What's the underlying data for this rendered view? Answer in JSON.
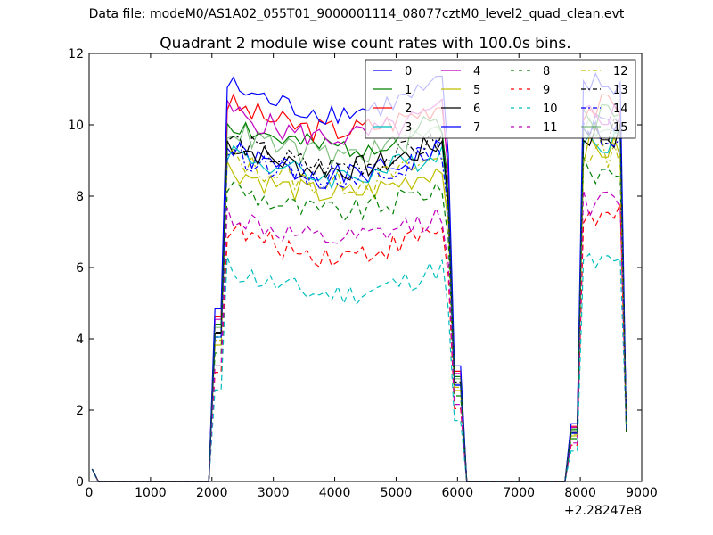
{
  "figure": {
    "supertitle": "Data file: modeM0/AS1A02_055T01_9000001114_08077cztM0_level2_quad_clean.evt"
  },
  "chart_data": {
    "type": "line",
    "title": "Quadrant 2 module wise count rates with 100.0s bins.",
    "xlabel": "",
    "ylabel": "",
    "x_offset_label": "+2.28247e8",
    "xlim": [
      0,
      9000
    ],
    "ylim": [
      0,
      12
    ],
    "xticks": [
      0,
      1000,
      2000,
      3000,
      4000,
      5000,
      6000,
      7000,
      8000,
      9000
    ],
    "yticks": [
      0,
      2,
      4,
      6,
      8,
      10,
      12
    ],
    "grid": false,
    "legend": {
      "placement": "top-right",
      "columns": 4
    },
    "series": [
      {
        "name": "0",
        "color": "#0000ff",
        "dash": "solid",
        "base": 9.0,
        "seg2": 10.0
      },
      {
        "name": "1",
        "color": "#008000",
        "dash": "solid",
        "base": 9.8,
        "seg2": 10.3
      },
      {
        "name": "2",
        "color": "#ff0000",
        "dash": "solid",
        "base": 10.3,
        "seg2": 10.5
      },
      {
        "name": "3",
        "color": "#00bfbf",
        "dash": "solid",
        "base": 9.0,
        "seg2": 9.6
      },
      {
        "name": "4",
        "color": "#bf00bf",
        "dash": "solid",
        "base": 10.1,
        "seg2": 10.3
      },
      {
        "name": "5",
        "color": "#bfbf00",
        "dash": "solid",
        "base": 8.5,
        "seg2": 9.3
      },
      {
        "name": "6",
        "color": "#000000",
        "dash": "solid",
        "base": 9.2,
        "seg2": 9.7
      },
      {
        "name": "7",
        "color": "#0000ff",
        "dash": "solid",
        "base": 10.8,
        "seg2": 11.1
      },
      {
        "name": "8",
        "color": "#008000",
        "dash": "dashed",
        "base": 8.0,
        "seg2": 8.7
      },
      {
        "name": "9",
        "color": "#ff0000",
        "dash": "dashed",
        "base": 6.8,
        "seg2": 7.4
      },
      {
        "name": "10",
        "color": "#00bfbf",
        "dash": "dashed",
        "base": 5.7,
        "seg2": 6.1
      },
      {
        "name": "11",
        "color": "#bf00bf",
        "dash": "dashed",
        "base": 7.2,
        "seg2": 7.8
      },
      {
        "name": "12",
        "color": "#bfbf00",
        "dash": "dashdot",
        "base": 8.8,
        "seg2": 9.2
      },
      {
        "name": "13",
        "color": "#000000",
        "dash": "dashdot",
        "base": 9.3,
        "seg2": 9.8
      },
      {
        "name": "14",
        "color": "#0000ff",
        "dash": "dashdot",
        "base": 9.0,
        "seg2": 9.7
      },
      {
        "name": "15",
        "color": "#008000",
        "dash": "solid",
        "alpha": 0.5,
        "base": 9.6,
        "seg2": 10.0
      }
    ],
    "time_axis": {
      "bin_seconds": 100,
      "start_x": 50,
      "end_x": 8750,
      "plateau1": [
        2200,
        5800
      ],
      "plateau2": [
        8050,
        8650
      ],
      "gap": [
        6100,
        7850
      ]
    }
  }
}
